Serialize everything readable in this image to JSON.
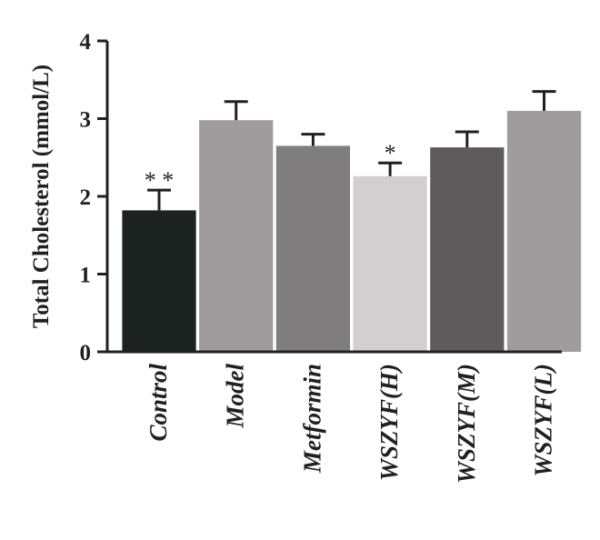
{
  "chart_data": {
    "type": "bar",
    "title": "",
    "xlabel": "",
    "ylabel": "Total Cholesterol (mmol/L)",
    "ylim": [
      0,
      4
    ],
    "yticks": [
      "0",
      "1",
      "2",
      "3",
      "4"
    ],
    "grid": false,
    "categories": [
      "Control",
      "Model",
      "Metformin",
      "WSZYF(H)",
      "WSZYF(M)",
      "WSZYF(L)"
    ],
    "values": [
      1.82,
      2.98,
      2.65,
      2.26,
      2.63,
      3.1
    ],
    "errors": [
      0.26,
      0.24,
      0.15,
      0.17,
      0.2,
      0.25
    ],
    "significance": [
      "**",
      "",
      "",
      "*",
      "",
      ""
    ],
    "colors": [
      "#1c221f",
      "#a09c9e",
      "#7f7d7e",
      "#d3cfd0",
      "#5f5b5c",
      "#a09c9e"
    ]
  }
}
